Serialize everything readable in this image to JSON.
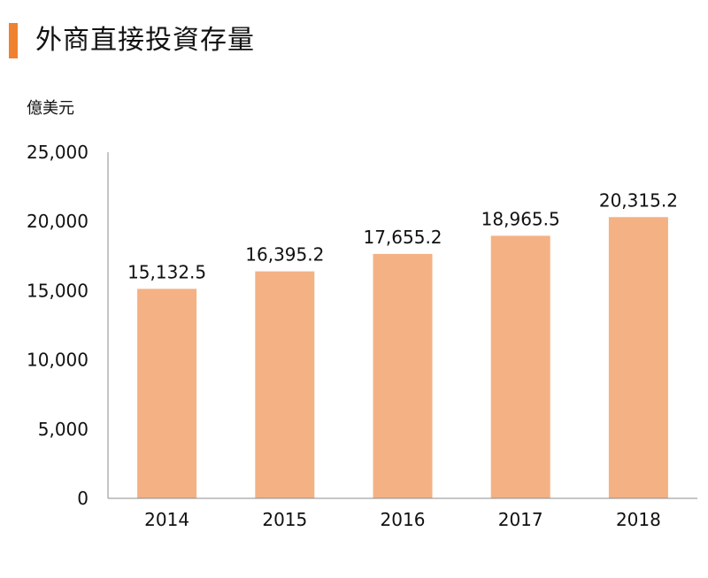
{
  "header": {
    "title": "外商直接投資存量"
  },
  "colors": {
    "accent": "#f0812e",
    "bar": "#f4b183",
    "axis": "#8c8c8c"
  },
  "chart_data": {
    "type": "bar",
    "title": "外商直接投資存量",
    "ylabel": "億美元",
    "xlabel": "",
    "categories": [
      "2014",
      "2015",
      "2016",
      "2017",
      "2018"
    ],
    "values": [
      15132.5,
      16395.2,
      17655.2,
      18965.5,
      20315.2
    ],
    "value_labels": [
      "15,132.5",
      "16,395.2",
      "17,655.2",
      "18,965.5",
      "20,315.2"
    ],
    "ylim": [
      0,
      25000
    ],
    "yticks": [
      0,
      5000,
      10000,
      15000,
      20000,
      25000
    ],
    "ytick_labels": [
      "0",
      "5,000",
      "10,000",
      "15,000",
      "20,000",
      "25,000"
    ],
    "grid": false,
    "legend": "none"
  }
}
